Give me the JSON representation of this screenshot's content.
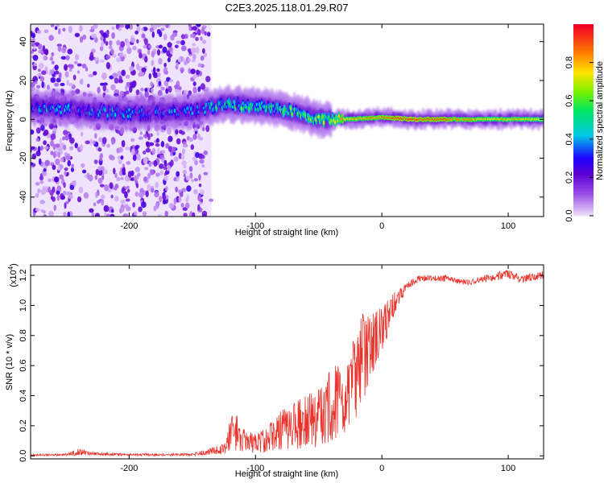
{
  "title": "C2E3.2025.118.01.29.R07",
  "chart_data": [
    {
      "type": "heatmap",
      "xlabel": "Height of straight line (km)",
      "ylabel": "Frequency (Hz)",
      "xlim": [
        -278,
        128
      ],
      "ylim": [
        -50,
        49
      ],
      "x_ticks": [
        -200,
        -100,
        0,
        100
      ],
      "y_ticks": [
        -40,
        -20,
        0,
        20,
        40
      ],
      "colorbar": {
        "label": "Normalized spectral amplitude",
        "range": [
          0,
          1
        ],
        "ticks": [
          "0.0",
          "0.2",
          "0.4",
          "0.6",
          "0.8"
        ],
        "tick_values": [
          0,
          0.2,
          0.4,
          0.6,
          0.8
        ],
        "colormap": "rainbow"
      },
      "ridge": [
        {
          "x": -245,
          "f": 5,
          "amp": 0.35
        },
        {
          "x": -200,
          "f": 3,
          "amp": 0.3
        },
        {
          "x": -150,
          "f": 4,
          "amp": 0.3
        },
        {
          "x": -125,
          "f": 8,
          "amp": 0.45
        },
        {
          "x": -100,
          "f": 7,
          "amp": 0.5
        },
        {
          "x": -75,
          "f": 5,
          "amp": 0.55
        },
        {
          "x": -50,
          "f": 0,
          "amp": 0.6
        },
        {
          "x": -30,
          "f": 0,
          "amp": 0.75
        },
        {
          "x": 0,
          "f": 1,
          "amp": 0.85
        },
        {
          "x": 25,
          "f": 0,
          "amp": 0.95
        },
        {
          "x": 70,
          "f": 0,
          "amp": 0.8
        },
        {
          "x": 128,
          "f": 0,
          "amp": 0.75
        }
      ],
      "noise_region_x": [
        -278,
        -135
      ]
    },
    {
      "type": "line",
      "xlabel": "Height of straight line (km)",
      "ylabel": "SNR (10 * v/v)",
      "y_multiplier": "(x10",
      "y_multiplier_exp": "4",
      "y_multiplier_close": ")",
      "xlim": [
        -278,
        128
      ],
      "ylim": [
        -0.02,
        1.27
      ],
      "x_ticks": [
        -200,
        -100,
        0,
        100
      ],
      "y_ticks": [
        "0.0",
        "0.2",
        "0.4",
        "0.6",
        "0.8",
        "1.0",
        "1.2"
      ],
      "y_tick_values": [
        0,
        0.2,
        0.4,
        0.6,
        0.8,
        1.0,
        1.2
      ],
      "color": "#e8342c",
      "envelope": {
        "x": [
          -278,
          -250,
          -240,
          -230,
          -200,
          -150,
          -125,
          -120,
          -115,
          -110,
          -100,
          -90,
          -80,
          -70,
          -60,
          -50,
          -45,
          -40,
          -35,
          -30,
          -25,
          -20,
          -15,
          -10,
          -5,
          0,
          5,
          10,
          15,
          20,
          25,
          30,
          40,
          50,
          60,
          70,
          80,
          90,
          100,
          110,
          120,
          128
        ],
        "low": [
          0.0,
          0.0,
          0.005,
          0.005,
          0.0,
          0.0,
          0.01,
          0.02,
          0.03,
          0.02,
          0.02,
          0.02,
          0.03,
          0.04,
          0.05,
          0.06,
          0.08,
          0.1,
          0.12,
          0.15,
          0.2,
          0.25,
          0.35,
          0.5,
          0.6,
          0.7,
          0.8,
          0.95,
          1.02,
          1.08,
          1.12,
          1.14,
          1.15,
          1.14,
          1.13,
          1.12,
          1.13,
          1.14,
          1.15,
          1.13,
          1.14,
          1.15
        ],
        "high": [
          0.01,
          0.015,
          0.05,
          0.025,
          0.015,
          0.015,
          0.08,
          0.25,
          0.3,
          0.18,
          0.15,
          0.2,
          0.3,
          0.35,
          0.4,
          0.45,
          0.5,
          0.6,
          0.6,
          0.5,
          0.7,
          0.85,
          0.95,
          0.95,
          0.95,
          1.0,
          1.05,
          1.1,
          1.12,
          1.15,
          1.18,
          1.2,
          1.2,
          1.2,
          1.18,
          1.17,
          1.2,
          1.22,
          1.24,
          1.2,
          1.22,
          1.23
        ]
      }
    }
  ]
}
